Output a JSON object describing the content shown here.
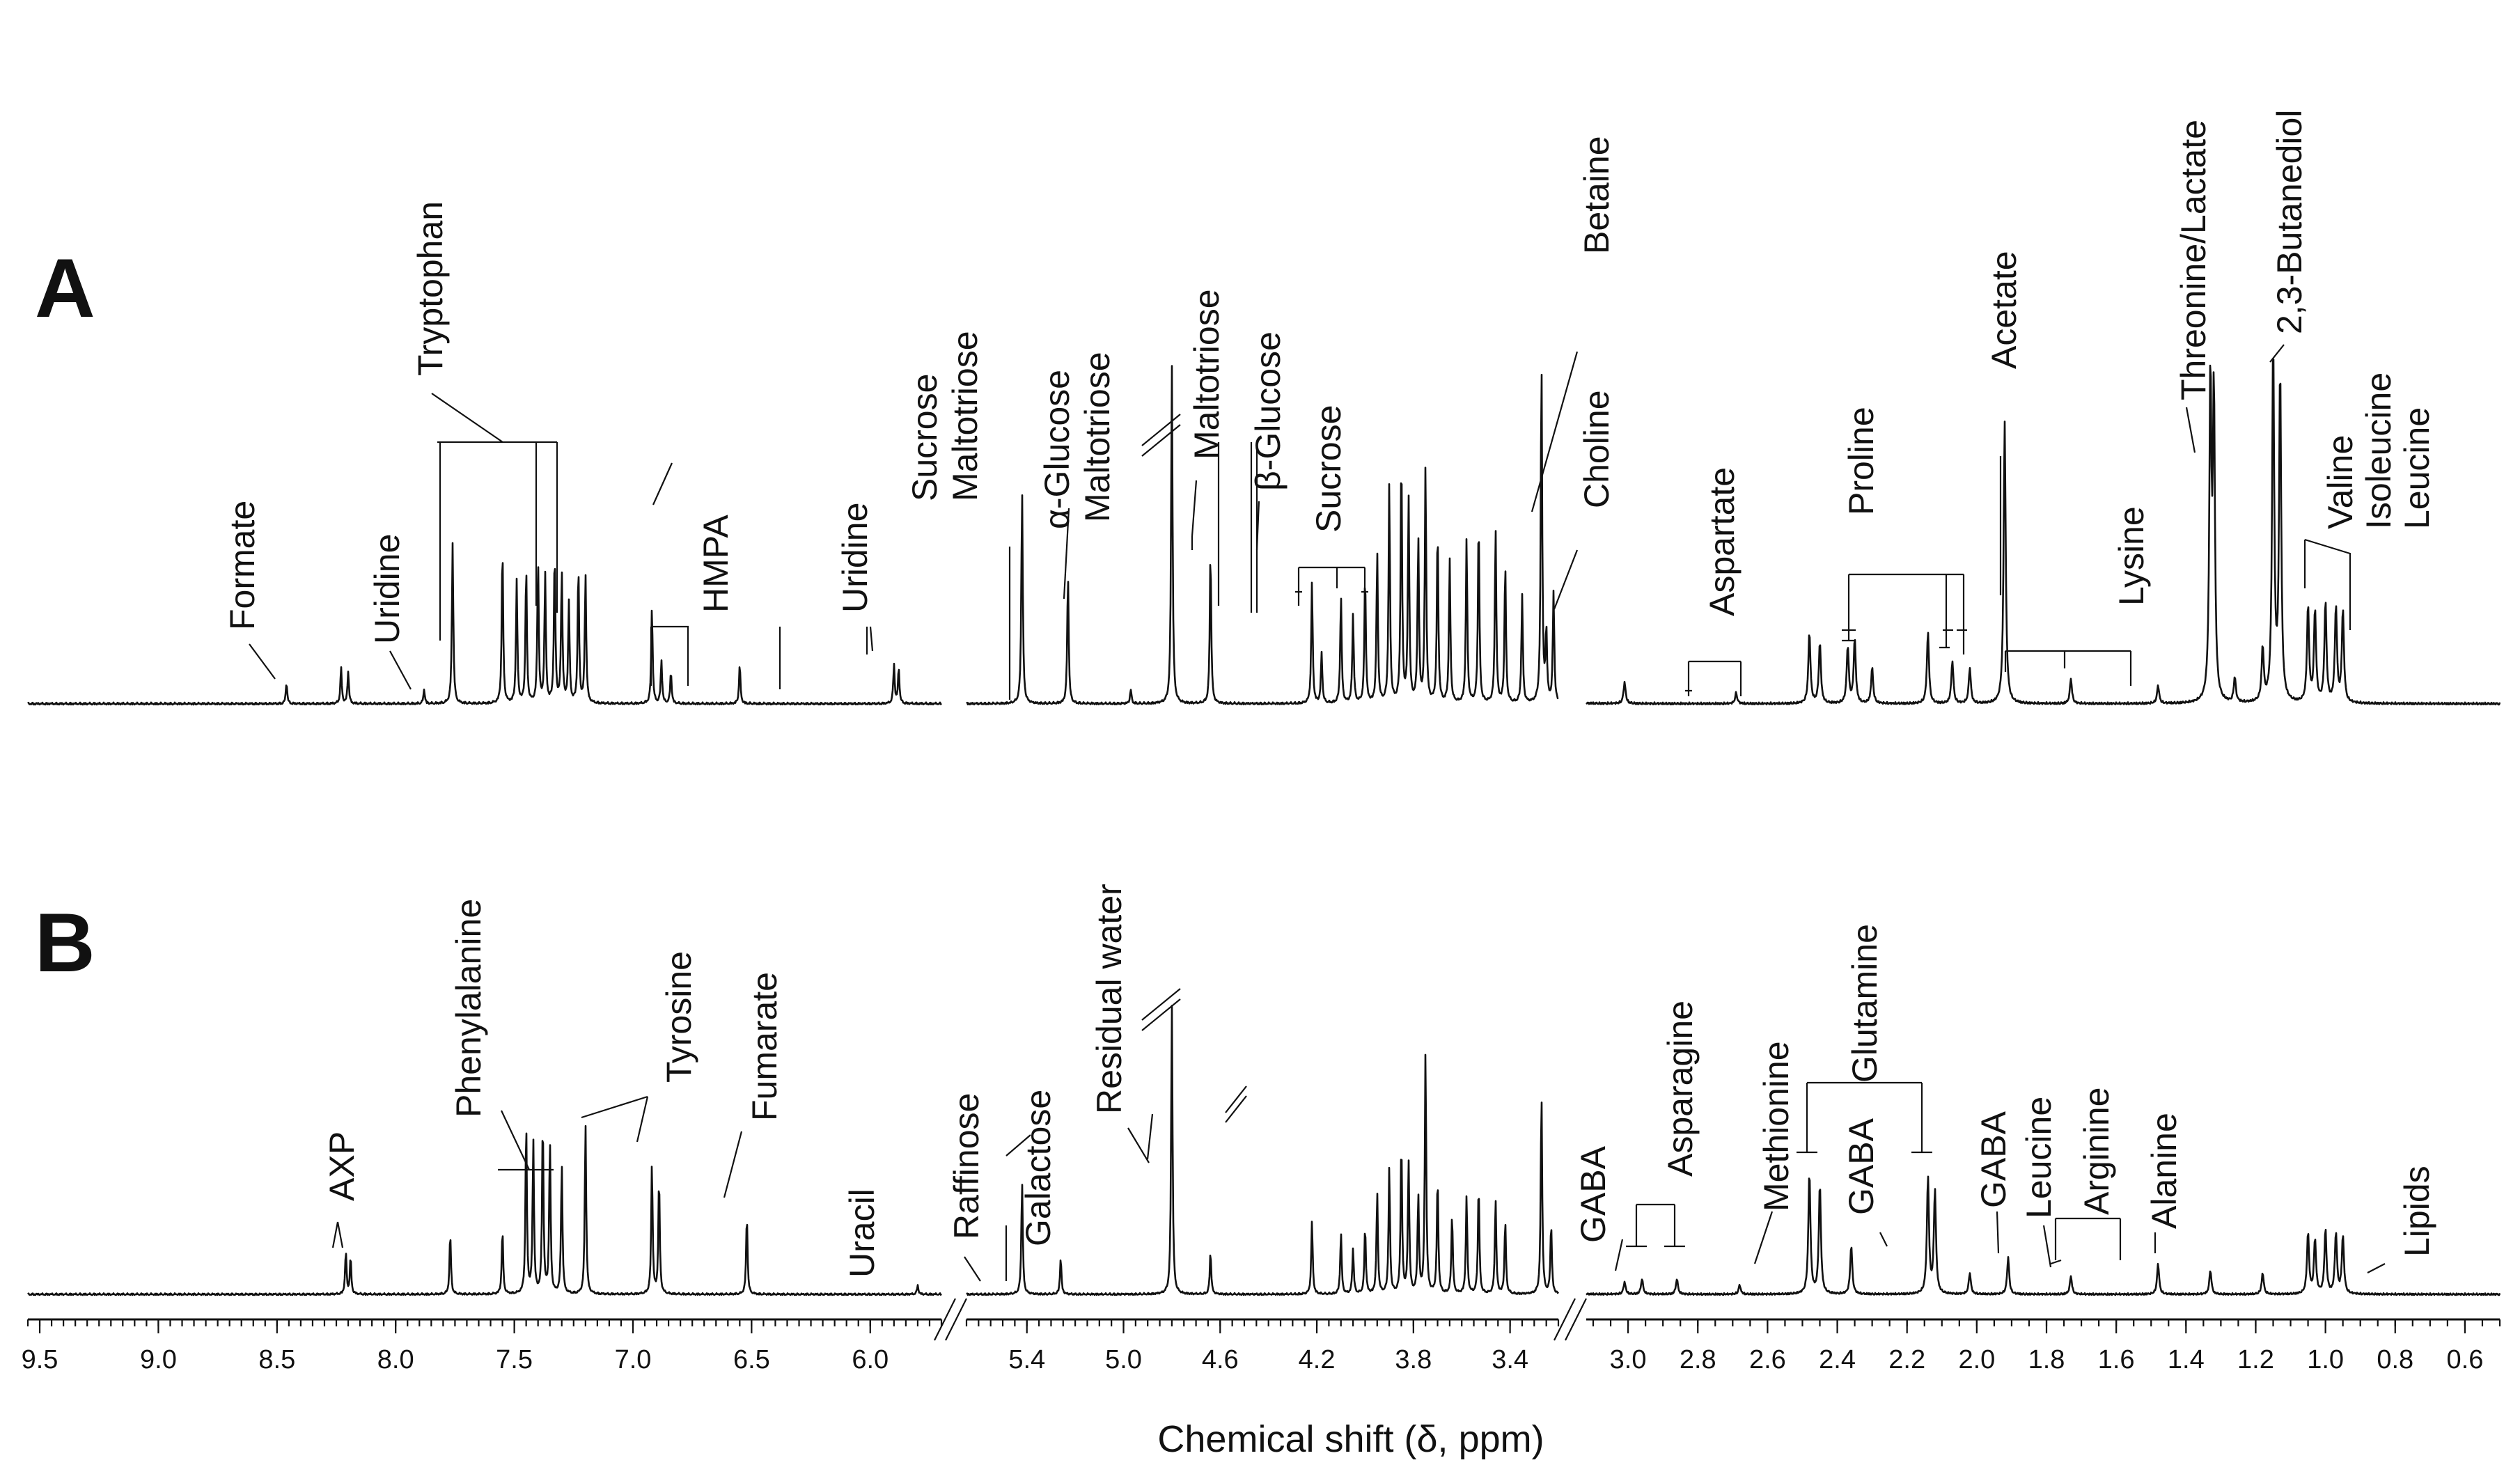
{
  "chart_data": {
    "type": "line",
    "title": "",
    "xlabel": "Chemical shift (δ, ppm)",
    "ylabel": "",
    "x_reversed": true,
    "x_segments": [
      {
        "range": [
          9.55,
          5.7
        ],
        "ticks": [
          "9.5",
          "9.0",
          "8.5",
          "8.0",
          "7.5",
          "7.0",
          "6.5",
          "6.0"
        ]
      },
      {
        "range": [
          5.65,
          3.2
        ],
        "ticks": [
          "5.4",
          "5.0",
          "4.6",
          "4.2",
          "3.8",
          "3.4"
        ]
      },
      {
        "range": [
          3.12,
          0.5
        ],
        "ticks": [
          "3.0",
          "2.8",
          "2.6",
          "2.4",
          "2.2",
          "2.0",
          "1.8",
          "1.6",
          "1.4",
          "1.2",
          "1.0",
          "0.8",
          "0.6"
        ]
      }
    ],
    "series": [
      {
        "name": "A",
        "peaks": [
          {
            "ppm": 8.46,
            "h": 0.06
          },
          {
            "ppm": 8.23,
            "h": 0.1
          },
          {
            "ppm": 8.2,
            "h": 0.09
          },
          {
            "ppm": 7.88,
            "h": 0.04
          },
          {
            "ppm": 7.76,
            "h": 0.45
          },
          {
            "ppm": 7.55,
            "h": 0.44
          },
          {
            "ppm": 7.49,
            "h": 0.34
          },
          {
            "ppm": 7.45,
            "h": 0.38
          },
          {
            "ppm": 7.4,
            "h": 0.4
          },
          {
            "ppm": 7.37,
            "h": 0.36
          },
          {
            "ppm": 7.33,
            "h": 0.42
          },
          {
            "ppm": 7.3,
            "h": 0.37
          },
          {
            "ppm": 7.27,
            "h": 0.28
          },
          {
            "ppm": 7.23,
            "h": 0.38
          },
          {
            "ppm": 7.2,
            "h": 0.36
          },
          {
            "ppm": 6.92,
            "h": 0.27
          },
          {
            "ppm": 6.88,
            "h": 0.12
          },
          {
            "ppm": 6.84,
            "h": 0.09
          },
          {
            "ppm": 6.55,
            "h": 0.11
          },
          {
            "ppm": 5.9,
            "h": 0.11
          },
          {
            "ppm": 5.88,
            "h": 0.1
          },
          {
            "ppm": 5.42,
            "h": 0.6
          },
          {
            "ppm": 5.23,
            "h": 0.36
          },
          {
            "ppm": 4.97,
            "h": 0.04
          },
          {
            "ppm": 4.8,
            "h": 0.95
          },
          {
            "ppm": 4.64,
            "h": 0.43
          },
          {
            "ppm": 4.22,
            "h": 0.34
          },
          {
            "ppm": 4.18,
            "h": 0.14
          },
          {
            "ppm": 4.1,
            "h": 0.3
          },
          {
            "ppm": 4.05,
            "h": 0.25
          },
          {
            "ppm": 4.0,
            "h": 0.36
          },
          {
            "ppm": 3.95,
            "h": 0.42
          },
          {
            "ppm": 3.9,
            "h": 0.61
          },
          {
            "ppm": 3.85,
            "h": 0.7
          },
          {
            "ppm": 3.82,
            "h": 0.57
          },
          {
            "ppm": 3.78,
            "h": 0.46
          },
          {
            "ppm": 3.75,
            "h": 0.66
          },
          {
            "ppm": 3.7,
            "h": 0.49
          },
          {
            "ppm": 3.65,
            "h": 0.4
          },
          {
            "ppm": 3.58,
            "h": 0.46
          },
          {
            "ppm": 3.53,
            "h": 0.52
          },
          {
            "ppm": 3.46,
            "h": 0.49
          },
          {
            "ppm": 3.42,
            "h": 0.39
          },
          {
            "ppm": 3.35,
            "h": 0.3
          },
          {
            "ppm": 3.27,
            "h": 0.96
          },
          {
            "ppm": 3.25,
            "h": 0.2
          },
          {
            "ppm": 3.22,
            "h": 0.31
          },
          {
            "ppm": 3.01,
            "h": 0.06
          },
          {
            "ppm": 2.69,
            "h": 0.03
          },
          {
            "ppm": 2.48,
            "h": 0.2
          },
          {
            "ppm": 2.45,
            "h": 0.17
          },
          {
            "ppm": 2.37,
            "h": 0.16
          },
          {
            "ppm": 2.35,
            "h": 0.18
          },
          {
            "ppm": 2.3,
            "h": 0.1
          },
          {
            "ppm": 2.14,
            "h": 0.2
          },
          {
            "ppm": 2.07,
            "h": 0.12
          },
          {
            "ppm": 2.02,
            "h": 0.1
          },
          {
            "ppm": 1.92,
            "h": 0.79
          },
          {
            "ppm": 1.73,
            "h": 0.07
          },
          {
            "ppm": 1.48,
            "h": 0.05
          },
          {
            "ppm": 1.33,
            "h": 0.9
          },
          {
            "ppm": 1.32,
            "h": 0.85
          },
          {
            "ppm": 1.26,
            "h": 0.07
          },
          {
            "ppm": 1.18,
            "h": 0.15
          },
          {
            "ppm": 1.15,
            "h": 1.0
          },
          {
            "ppm": 1.13,
            "h": 0.93
          },
          {
            "ppm": 1.05,
            "h": 0.27
          },
          {
            "ppm": 1.03,
            "h": 0.26
          },
          {
            "ppm": 1.0,
            "h": 0.28
          },
          {
            "ppm": 0.97,
            "h": 0.27
          },
          {
            "ppm": 0.95,
            "h": 0.26
          }
        ]
      },
      {
        "name": "B",
        "peaks": [
          {
            "ppm": 8.21,
            "h": 0.14
          },
          {
            "ppm": 8.19,
            "h": 0.12
          },
          {
            "ppm": 7.77,
            "h": 0.2
          },
          {
            "ppm": 7.55,
            "h": 0.21
          },
          {
            "ppm": 7.45,
            "h": 0.56
          },
          {
            "ppm": 7.42,
            "h": 0.5
          },
          {
            "ppm": 7.38,
            "h": 0.57
          },
          {
            "ppm": 7.35,
            "h": 0.5
          },
          {
            "ppm": 7.3,
            "h": 0.43
          },
          {
            "ppm": 7.2,
            "h": 0.56
          },
          {
            "ppm": 6.92,
            "h": 0.43
          },
          {
            "ppm": 6.89,
            "h": 0.38
          },
          {
            "ppm": 6.52,
            "h": 0.26
          },
          {
            "ppm": 5.8,
            "h": 0.03
          },
          {
            "ppm": 5.42,
            "h": 0.37
          },
          {
            "ppm": 5.26,
            "h": 0.12
          },
          {
            "ppm": 4.8,
            "h": 0.95
          },
          {
            "ppm": 4.64,
            "h": 0.14
          },
          {
            "ppm": 4.22,
            "h": 0.24
          },
          {
            "ppm": 4.1,
            "h": 0.2
          },
          {
            "ppm": 4.05,
            "h": 0.15
          },
          {
            "ppm": 4.0,
            "h": 0.22
          },
          {
            "ppm": 3.95,
            "h": 0.33
          },
          {
            "ppm": 3.9,
            "h": 0.41
          },
          {
            "ppm": 3.85,
            "h": 0.5
          },
          {
            "ppm": 3.82,
            "h": 0.43
          },
          {
            "ppm": 3.78,
            "h": 0.32
          },
          {
            "ppm": 3.75,
            "h": 0.79
          },
          {
            "ppm": 3.7,
            "h": 0.38
          },
          {
            "ppm": 3.64,
            "h": 0.26
          },
          {
            "ppm": 3.58,
            "h": 0.32
          },
          {
            "ppm": 3.53,
            "h": 0.36
          },
          {
            "ppm": 3.46,
            "h": 0.31
          },
          {
            "ppm": 3.42,
            "h": 0.24
          },
          {
            "ppm": 3.27,
            "h": 0.66
          },
          {
            "ppm": 3.23,
            "h": 0.23
          },
          {
            "ppm": 3.01,
            "h": 0.04
          },
          {
            "ppm": 2.96,
            "h": 0.05
          },
          {
            "ppm": 2.86,
            "h": 0.05
          },
          {
            "ppm": 2.68,
            "h": 0.03
          },
          {
            "ppm": 2.48,
            "h": 0.4
          },
          {
            "ppm": 2.45,
            "h": 0.36
          },
          {
            "ppm": 2.36,
            "h": 0.16
          },
          {
            "ppm": 2.14,
            "h": 0.38
          },
          {
            "ppm": 2.12,
            "h": 0.34
          },
          {
            "ppm": 2.02,
            "h": 0.07
          },
          {
            "ppm": 1.91,
            "h": 0.12
          },
          {
            "ppm": 1.73,
            "h": 0.06
          },
          {
            "ppm": 1.48,
            "h": 0.1
          },
          {
            "ppm": 1.33,
            "h": 0.08
          },
          {
            "ppm": 1.18,
            "h": 0.07
          },
          {
            "ppm": 1.05,
            "h": 0.2
          },
          {
            "ppm": 1.03,
            "h": 0.18
          },
          {
            "ppm": 1.0,
            "h": 0.21
          },
          {
            "ppm": 0.97,
            "h": 0.2
          },
          {
            "ppm": 0.95,
            "h": 0.19
          }
        ]
      }
    ],
    "panels": [
      "A",
      "B"
    ],
    "labels_A": {
      "formate": "Formate",
      "uridine_1": "Uridine",
      "tryptophan": "Tryptophan",
      "hmpa": "HMPA",
      "uridine_2": "Uridine",
      "sucrose_1": "Sucrose",
      "maltotriose_1": "Maltotriose",
      "alpha_glucose": "α-Glucose",
      "maltotriose_2": "Maltotriose",
      "maltotriose_3": "Maltotriose",
      "beta_glucose": "β-Glucose",
      "sucrose_2": "Sucrose",
      "betaine": "Betaine",
      "choline": "Choline",
      "aspartate": "Aspartate",
      "proline": "Proline",
      "acetate": "Acetate",
      "lysine": "Lysine",
      "threonine_lactate": "Threonine/Lactate",
      "butanediol": "2,3-Butanediol",
      "valine": "Valine",
      "isoleucine": "Isoleucine",
      "leucine": "Leucine"
    },
    "labels_B": {
      "axp": "AXP",
      "phenylalanine": "Phenylalanine",
      "tyrosine": "Tyrosine",
      "fumarate": "Fumarate",
      "uracil": "Uracil",
      "raffinose": "Raffinose",
      "galactose": "Galactose",
      "residual_water": "Residual water",
      "gaba_1": "GABA",
      "asparagine": "Asparagine",
      "methionine": "Methionine",
      "glutamine": "Glutamine",
      "gaba_2": "GABA",
      "gaba_3": "GABA",
      "leucine": "Leucine",
      "arginine": "Arginine",
      "alanine": "Alanine",
      "lipids": "Lipids"
    }
  }
}
